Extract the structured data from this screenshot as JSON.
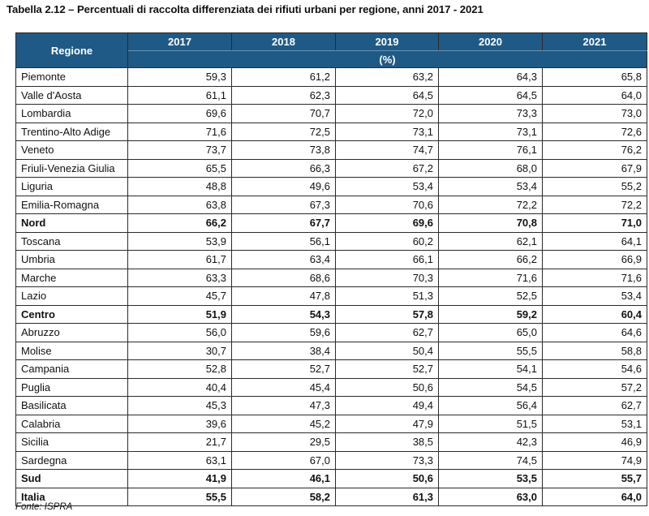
{
  "title": "Tabella 2.12 – Percentuali di raccolta differenziata dei rifiuti urbani per regione, anni 2017 - 2021",
  "table": {
    "region_header": "Regione",
    "years": [
      "2017",
      "2018",
      "2019",
      "2020",
      "2021"
    ],
    "unit": "(%)",
    "rows": [
      {
        "region": "Piemonte",
        "values": [
          "59,3",
          "61,2",
          "63,2",
          "64,3",
          "65,8"
        ]
      },
      {
        "region": "Valle d'Aosta",
        "values": [
          "61,1",
          "62,3",
          "64,5",
          "64,5",
          "64,0"
        ]
      },
      {
        "region": "Lombardia",
        "values": [
          "69,6",
          "70,7",
          "72,0",
          "73,3",
          "73,0"
        ]
      },
      {
        "region": "Trentino-Alto Adige",
        "values": [
          "71,6",
          "72,5",
          "73,1",
          "73,1",
          "72,6"
        ]
      },
      {
        "region": "Veneto",
        "values": [
          "73,7",
          "73,8",
          "74,7",
          "76,1",
          "76,2"
        ]
      },
      {
        "region": "Friuli-Venezia Giulia",
        "values": [
          "65,5",
          "66,3",
          "67,2",
          "68,0",
          "67,9"
        ]
      },
      {
        "region": "Liguria",
        "values": [
          "48,8",
          "49,6",
          "53,4",
          "53,4",
          "55,2"
        ]
      },
      {
        "region": "Emilia-Romagna",
        "values": [
          "63,8",
          "67,3",
          "70,6",
          "72,2",
          "72,2"
        ]
      },
      {
        "region": "Nord",
        "values": [
          "66,2",
          "67,7",
          "69,6",
          "70,8",
          "71,0"
        ],
        "total": true
      },
      {
        "region": "Toscana",
        "values": [
          "53,9",
          "56,1",
          "60,2",
          "62,1",
          "64,1"
        ]
      },
      {
        "region": "Umbria",
        "values": [
          "61,7",
          "63,4",
          "66,1",
          "66,2",
          "66,9"
        ]
      },
      {
        "region": "Marche",
        "values": [
          "63,3",
          "68,6",
          "70,3",
          "71,6",
          "71,6"
        ]
      },
      {
        "region": "Lazio",
        "values": [
          "45,7",
          "47,8",
          "51,3",
          "52,5",
          "53,4"
        ]
      },
      {
        "region": "Centro",
        "values": [
          "51,9",
          "54,3",
          "57,8",
          "59,2",
          "60,4"
        ],
        "total": true
      },
      {
        "region": "Abruzzo",
        "values": [
          "56,0",
          "59,6",
          "62,7",
          "65,0",
          "64,6"
        ]
      },
      {
        "region": "Molise",
        "values": [
          "30,7",
          "38,4",
          "50,4",
          "55,5",
          "58,8"
        ]
      },
      {
        "region": "Campania",
        "values": [
          "52,8",
          "52,7",
          "52,7",
          "54,1",
          "54,6"
        ]
      },
      {
        "region": "Puglia",
        "values": [
          "40,4",
          "45,4",
          "50,6",
          "54,5",
          "57,2"
        ]
      },
      {
        "region": "Basilicata",
        "values": [
          "45,3",
          "47,3",
          "49,4",
          "56,4",
          "62,7"
        ]
      },
      {
        "region": "Calabria",
        "values": [
          "39,6",
          "45,2",
          "47,9",
          "51,5",
          "53,1"
        ]
      },
      {
        "region": "Sicilia",
        "values": [
          "21,7",
          "29,5",
          "38,5",
          "42,3",
          "46,9"
        ]
      },
      {
        "region": "Sardegna",
        "values": [
          "63,1",
          "67,0",
          "73,3",
          "74,5",
          "74,9"
        ]
      },
      {
        "region": "Sud",
        "values": [
          "41,9",
          "46,1",
          "50,6",
          "53,5",
          "55,7"
        ],
        "total": true
      },
      {
        "region": "Italia",
        "values": [
          "55,5",
          "58,2",
          "61,3",
          "63,0",
          "64,0"
        ],
        "total": true
      }
    ]
  },
  "source": "Fonte: ISPRA",
  "colors": {
    "header_bg": "#1f5a86",
    "header_text": "#ffffff"
  }
}
